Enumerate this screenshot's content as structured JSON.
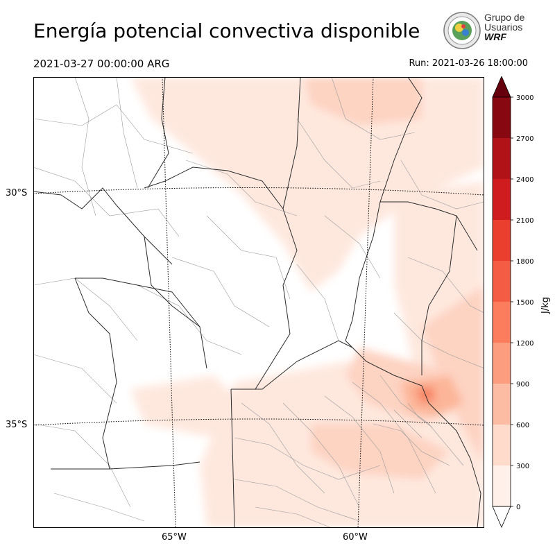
{
  "header": {
    "title": "Energía potencial convectiva disponible",
    "valid_time": "2021-03-27 00:00:00 ARG",
    "run_time": "Run: 2021-03-26 18:00:00"
  },
  "logo": {
    "line1": "Grupo de",
    "line2": "Usuarios",
    "line3": "WRF"
  },
  "map": {
    "lat_labels": [
      "30°S",
      "35°S"
    ],
    "lon_labels": [
      "65°W",
      "60°W"
    ],
    "field_colors": {
      "low": "#fee8de",
      "mid": "#fdd3c2",
      "high": "#fcb598",
      "peak": "#f88566"
    }
  },
  "colorbar": {
    "label": "J/kg",
    "ticks": [
      "0",
      "300",
      "600",
      "900",
      "1200",
      "1500",
      "1800",
      "2100",
      "2400",
      "2700",
      "3000"
    ],
    "colors": [
      "#fff0e9",
      "#fedbcb",
      "#fcbca3",
      "#fc9d7f",
      "#fb7d5d",
      "#f45d43",
      "#ea3e2f",
      "#cf1c1f",
      "#b01217",
      "#880811",
      "#67000d"
    ]
  }
}
